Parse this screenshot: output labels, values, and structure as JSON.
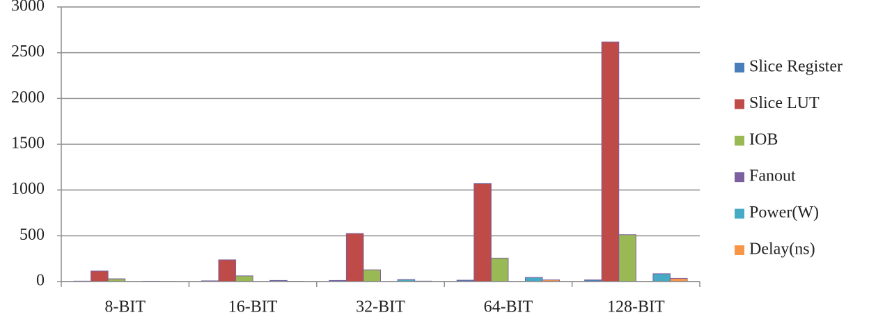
{
  "chart_data": {
    "type": "bar",
    "categories": [
      "8-BIT",
      "16-BIT",
      "32-BIT",
      "64-BIT",
      "128-BIT"
    ],
    "series": [
      {
        "name": "Slice Register",
        "color": "#4a7ebb",
        "values": [
          5,
          8,
          12,
          15,
          18
        ]
      },
      {
        "name": "Slice LUT",
        "color": "#be4b48",
        "values": [
          115,
          237,
          525,
          1070,
          2618
        ]
      },
      {
        "name": "IOB",
        "color": "#98b954",
        "values": [
          30,
          62,
          128,
          256,
          512
        ]
      },
      {
        "name": "Fanout",
        "color": "#7d60a0",
        "values": [
          0,
          0,
          0,
          0,
          0
        ]
      },
      {
        "name": "Power(W)",
        "color": "#46aac5",
        "values": [
          4,
          12,
          22,
          45,
          85
        ]
      },
      {
        "name": "Delay(ns)",
        "color": "#f79646",
        "values": [
          2,
          3,
          5,
          18,
          35
        ]
      }
    ],
    "ylim": [
      0,
      3000
    ],
    "yticks": [
      0,
      500,
      1000,
      1500,
      2000,
      2500,
      3000
    ],
    "grid": true
  }
}
